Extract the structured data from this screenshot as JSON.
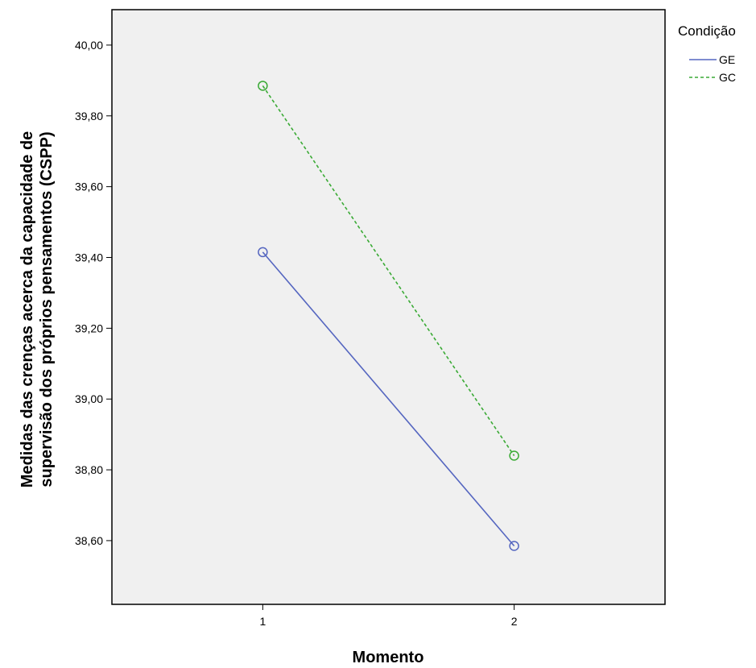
{
  "chart_data": {
    "type": "line",
    "xlabel": "Momento",
    "ylabel_line1": "Medidas das crenças acerca da capacidade de",
    "ylabel_line2": "supervisão dos próprios pensamentos (CSPP)",
    "categories": [
      "1",
      "2"
    ],
    "x_range": [
      0.4,
      2.6
    ],
    "ylim": [
      38.42,
      40.1
    ],
    "y_ticks": [
      40.0,
      39.8,
      39.6,
      39.4,
      39.2,
      39.0,
      38.8,
      38.6
    ],
    "y_tick_labels": [
      "40,00",
      "39,80",
      "39,60",
      "39,40",
      "39,20",
      "39,00",
      "38,80",
      "38,60"
    ],
    "grid": false,
    "legend": {
      "title": "Condição",
      "position": "right-top"
    },
    "series": [
      {
        "name": "GE",
        "values": [
          39.415,
          38.585
        ],
        "color": "#5566c0",
        "dash": "solid",
        "marker": "circle-open"
      },
      {
        "name": "GC",
        "values": [
          39.885,
          38.84
        ],
        "color": "#3aaa35",
        "dash": "dashed",
        "marker": "circle-open"
      }
    ],
    "plot_background": "#f0f0f0"
  }
}
